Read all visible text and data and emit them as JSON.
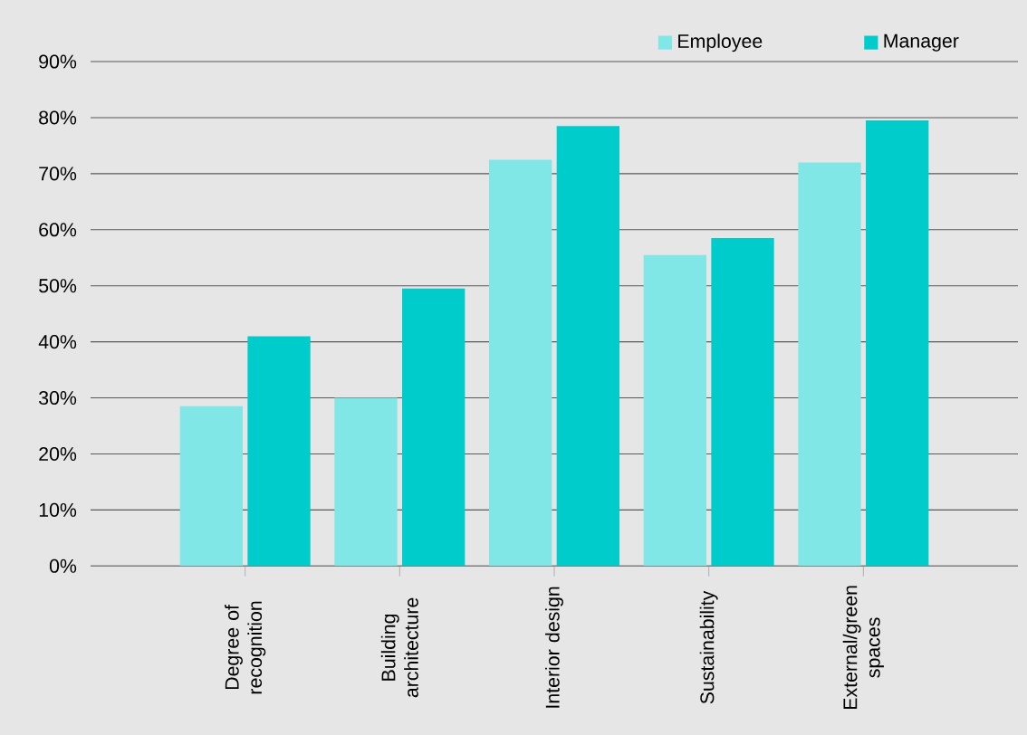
{
  "chart_data": {
    "type": "bar",
    "categories": [
      "Degree of recognition",
      "Building architecture",
      "Interior design",
      "Sustainability",
      "External/green spaces"
    ],
    "series": [
      {
        "name": "Employee",
        "color": "#80e6e6",
        "values": [
          28.5,
          30,
          72.5,
          55.5,
          72
        ]
      },
      {
        "name": "Manager",
        "color": "#00cccc",
        "values": [
          41,
          49.5,
          78.5,
          58.5,
          79.5
        ]
      }
    ],
    "ylim": [
      0,
      90
    ],
    "yticks": [
      {
        "value": 0,
        "label": "0%"
      },
      {
        "value": 10,
        "label": "10%"
      },
      {
        "value": 20,
        "label": "20%"
      },
      {
        "value": 30,
        "label": "30%"
      },
      {
        "value": 40,
        "label": "40%"
      },
      {
        "value": 50,
        "label": "50%"
      },
      {
        "value": 60,
        "label": "60%"
      },
      {
        "value": 70,
        "label": "70%"
      },
      {
        "value": 80,
        "label": "80%"
      },
      {
        "value": 90,
        "label": "90%"
      }
    ],
    "grid": "y",
    "legend": "top"
  }
}
